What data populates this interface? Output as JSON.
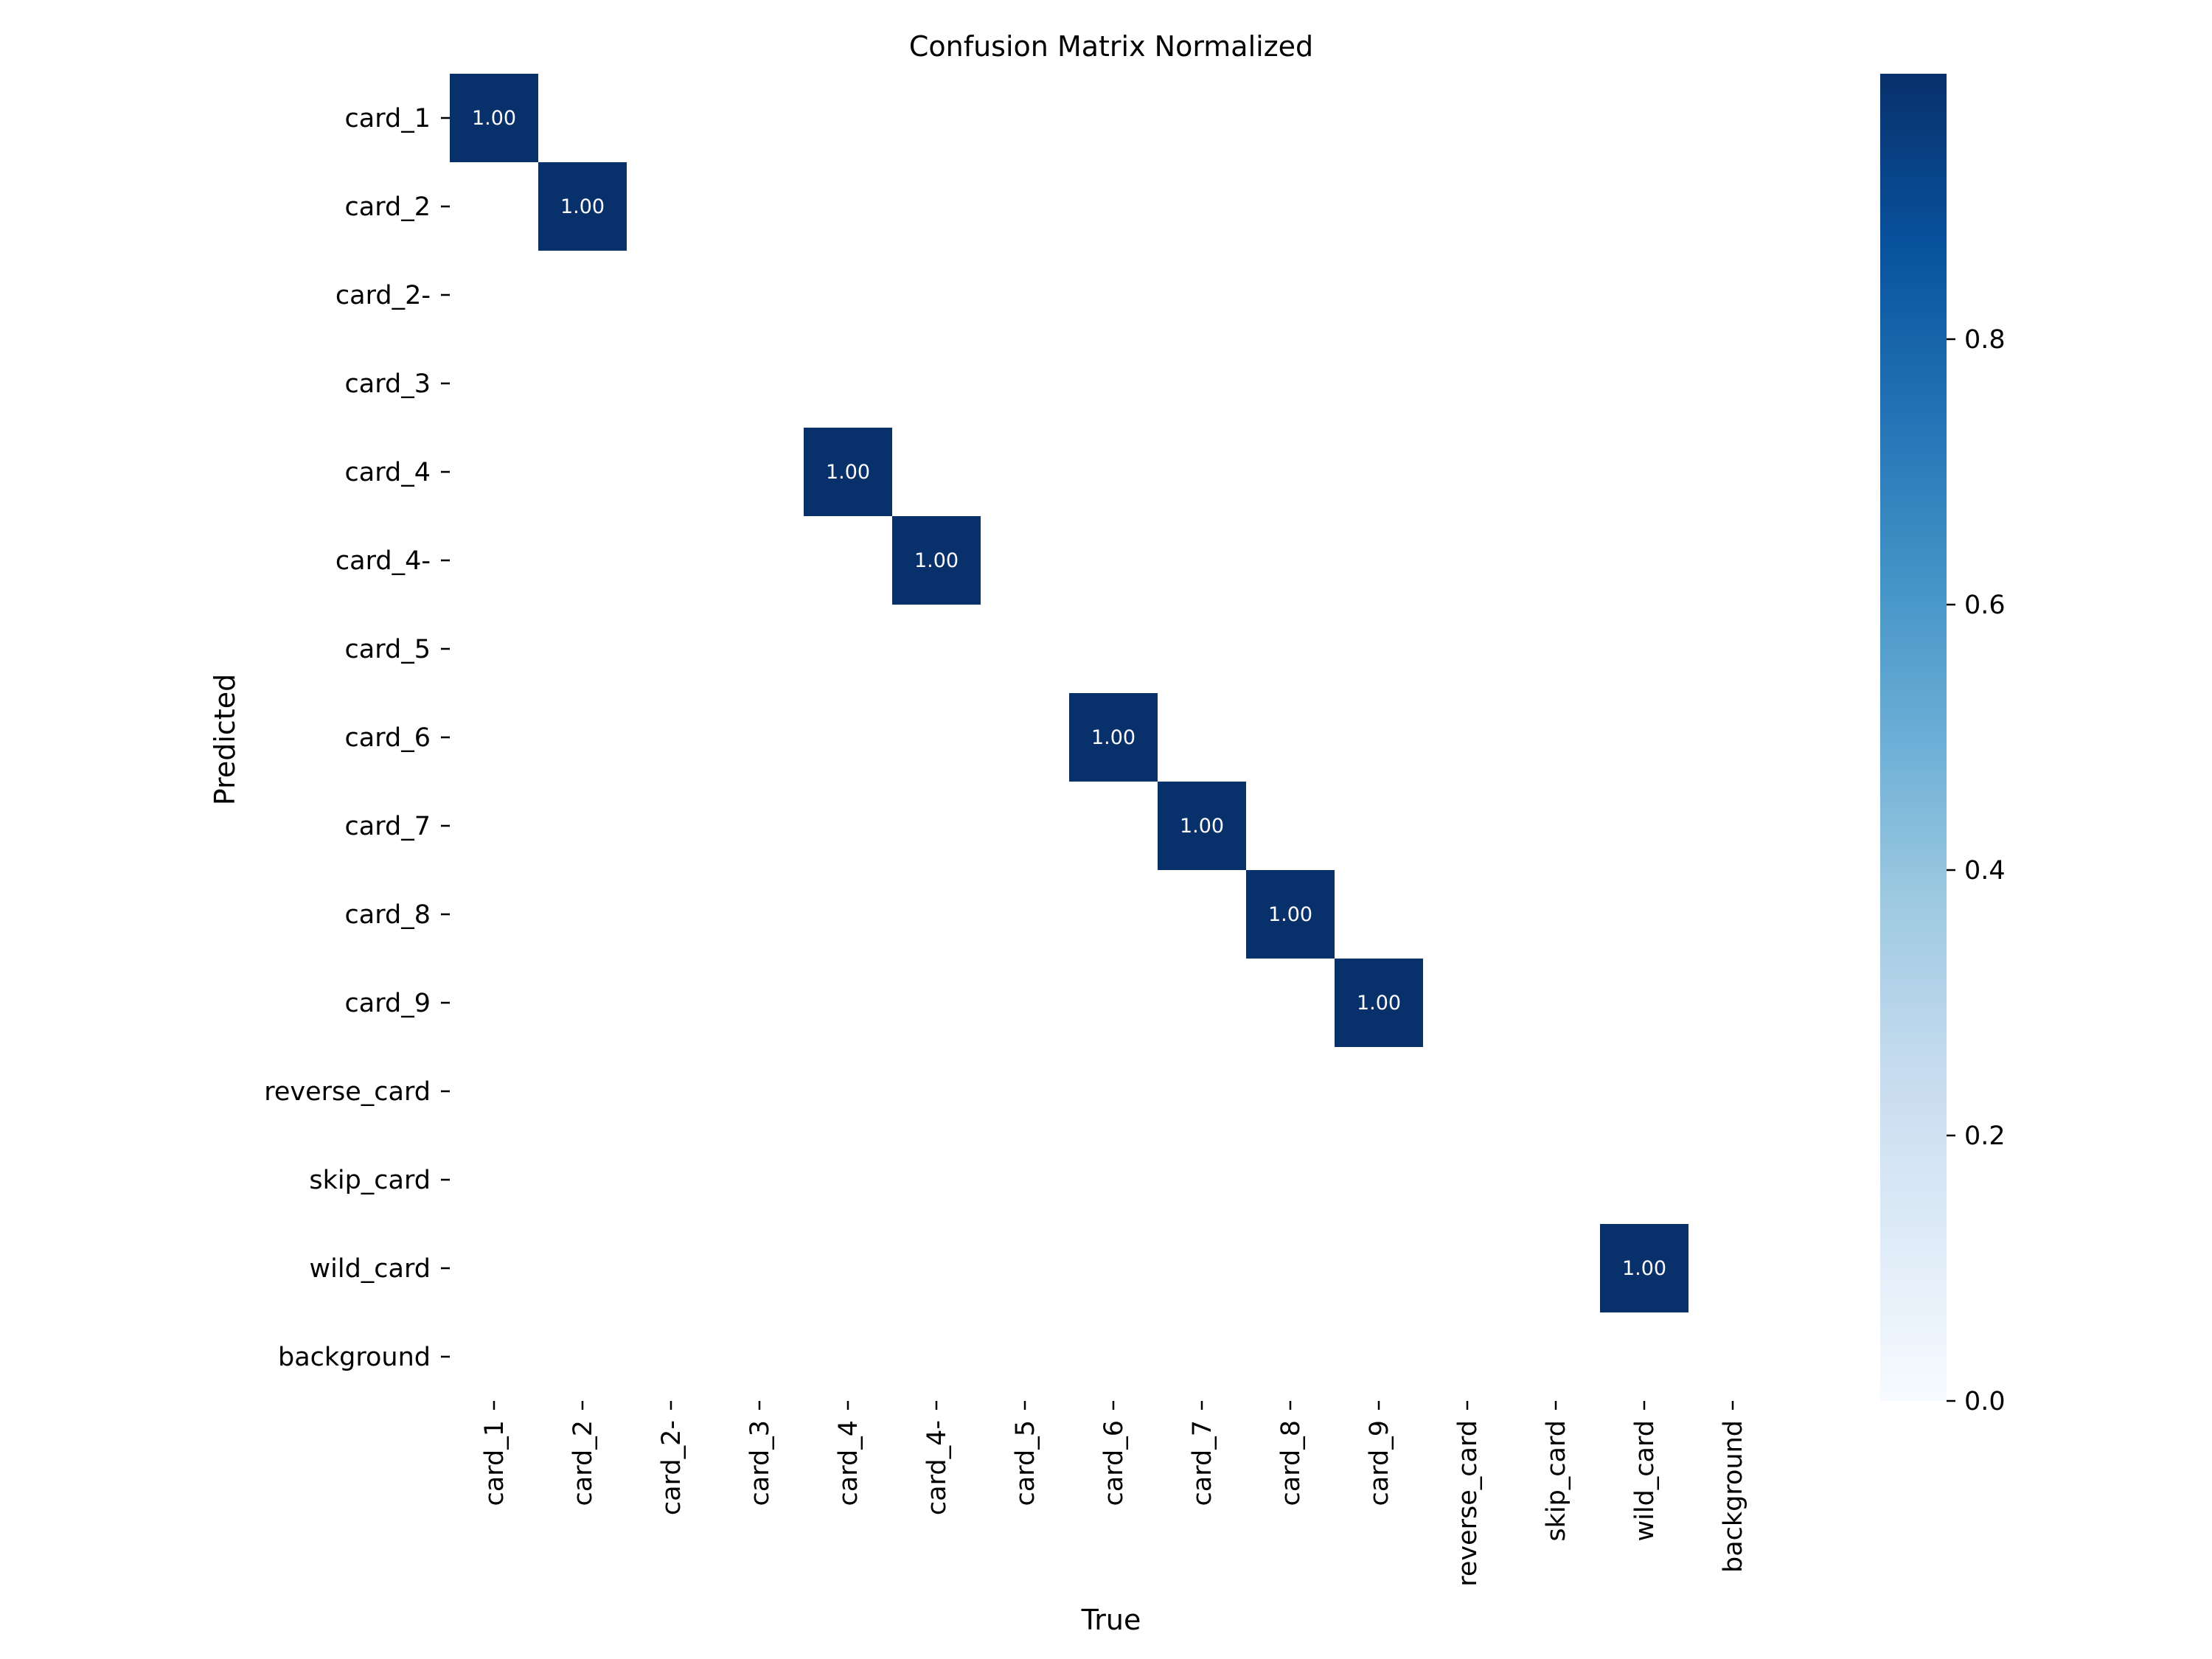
{
  "chart_data": {
    "type": "heatmap",
    "title": "Confusion Matrix Normalized",
    "xlabel": "True",
    "ylabel": "Predicted",
    "x_categories": [
      "card_1",
      "card_2",
      "card_2-",
      "card_3",
      "card_4",
      "card_4-",
      "card_5",
      "card_6",
      "card_7",
      "card_8",
      "card_9",
      "reverse_card",
      "skip_card",
      "wild_card",
      "background"
    ],
    "y_categories": [
      "card_1",
      "card_2",
      "card_2-",
      "card_3",
      "card_4",
      "card_4-",
      "card_5",
      "card_6",
      "card_7",
      "card_8",
      "card_9",
      "reverse_card",
      "skip_card",
      "wild_card",
      "background"
    ],
    "cells": [
      {
        "row": "card_1",
        "col": "card_1",
        "value": 1.0,
        "label": "1.00"
      },
      {
        "row": "card_2",
        "col": "card_2",
        "value": 1.0,
        "label": "1.00"
      },
      {
        "row": "card_4",
        "col": "card_4",
        "value": 1.0,
        "label": "1.00"
      },
      {
        "row": "card_4-",
        "col": "card_4-",
        "value": 1.0,
        "label": "1.00"
      },
      {
        "row": "card_6",
        "col": "card_6",
        "value": 1.0,
        "label": "1.00"
      },
      {
        "row": "card_7",
        "col": "card_7",
        "value": 1.0,
        "label": "1.00"
      },
      {
        "row": "card_8",
        "col": "card_8",
        "value": 1.0,
        "label": "1.00"
      },
      {
        "row": "card_9",
        "col": "card_9",
        "value": 1.0,
        "label": "1.00"
      },
      {
        "row": "wild_card",
        "col": "wild_card",
        "value": 1.0,
        "label": "1.00"
      }
    ],
    "empty_cells_shown": false,
    "colormap": "Blues",
    "colorbar": {
      "range": [
        0,
        1
      ],
      "ticks": [
        0.0,
        0.2,
        0.4,
        0.6,
        0.8
      ],
      "tick_labels": [
        "0.0",
        "0.2",
        "0.4",
        "0.6",
        "0.8"
      ]
    },
    "colors": {
      "low": "#f7fbff",
      "high": "#08306b"
    },
    "grid": false
  }
}
